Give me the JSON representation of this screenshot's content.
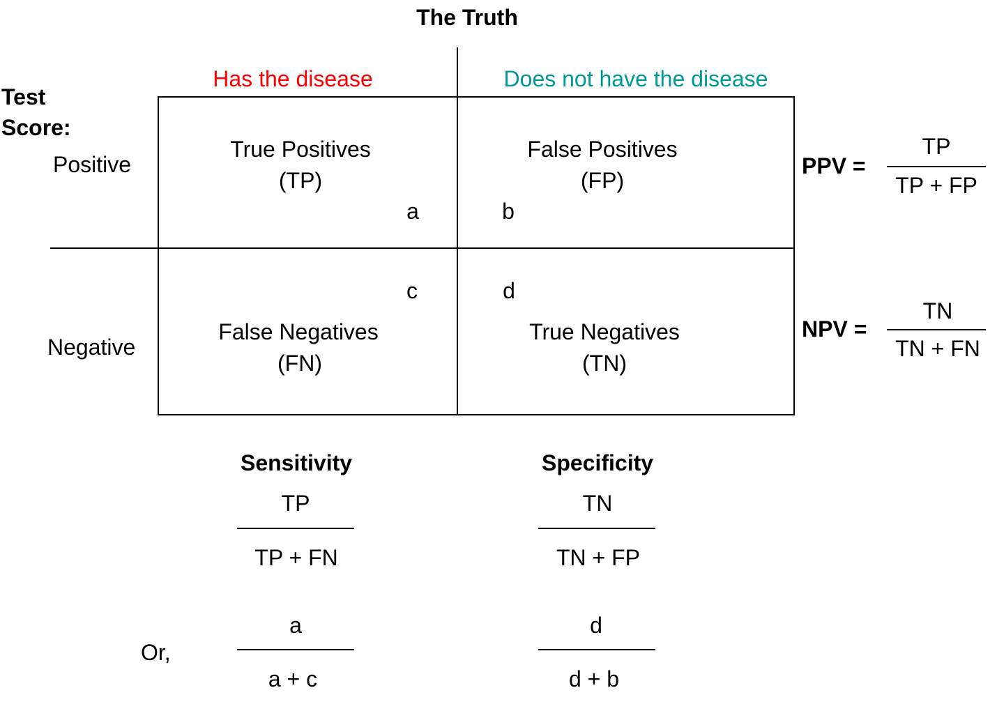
{
  "title": "The Truth",
  "columns": {
    "has_disease": "Has the disease",
    "no_disease": "Does not have the disease"
  },
  "rows": {
    "test_label": "Test\nScore:",
    "positive": "Positive",
    "negative": "Negative"
  },
  "cells": {
    "tp": {
      "name": "True Positives",
      "abbr": "(TP)",
      "letter": "a"
    },
    "fp": {
      "name": "False Positives",
      "abbr": "(FP)",
      "letter": "b"
    },
    "fn": {
      "name": "False Negatives",
      "abbr": "(FN)",
      "letter": "c"
    },
    "tn": {
      "name": "True Negatives",
      "abbr": "(TN)",
      "letter": "d"
    }
  },
  "ppv": {
    "label": "PPV =",
    "numerator": "TP",
    "denominator": "TP + FP"
  },
  "npv": {
    "label": "NPV =",
    "numerator": "TN",
    "denominator": "TN + FN"
  },
  "sensitivity": {
    "label": "Sensitivity",
    "numerator": "TP",
    "denominator": "TP + FN",
    "alt_numerator": "a",
    "alt_denominator": "a + c"
  },
  "specificity": {
    "label": "Specificity",
    "numerator": "TN",
    "denominator": "TN + FP",
    "alt_numerator": "d",
    "alt_denominator": "d + b"
  },
  "or_label": "Or,",
  "colors": {
    "has_disease": "#ff0000",
    "no_disease": "#009999"
  }
}
